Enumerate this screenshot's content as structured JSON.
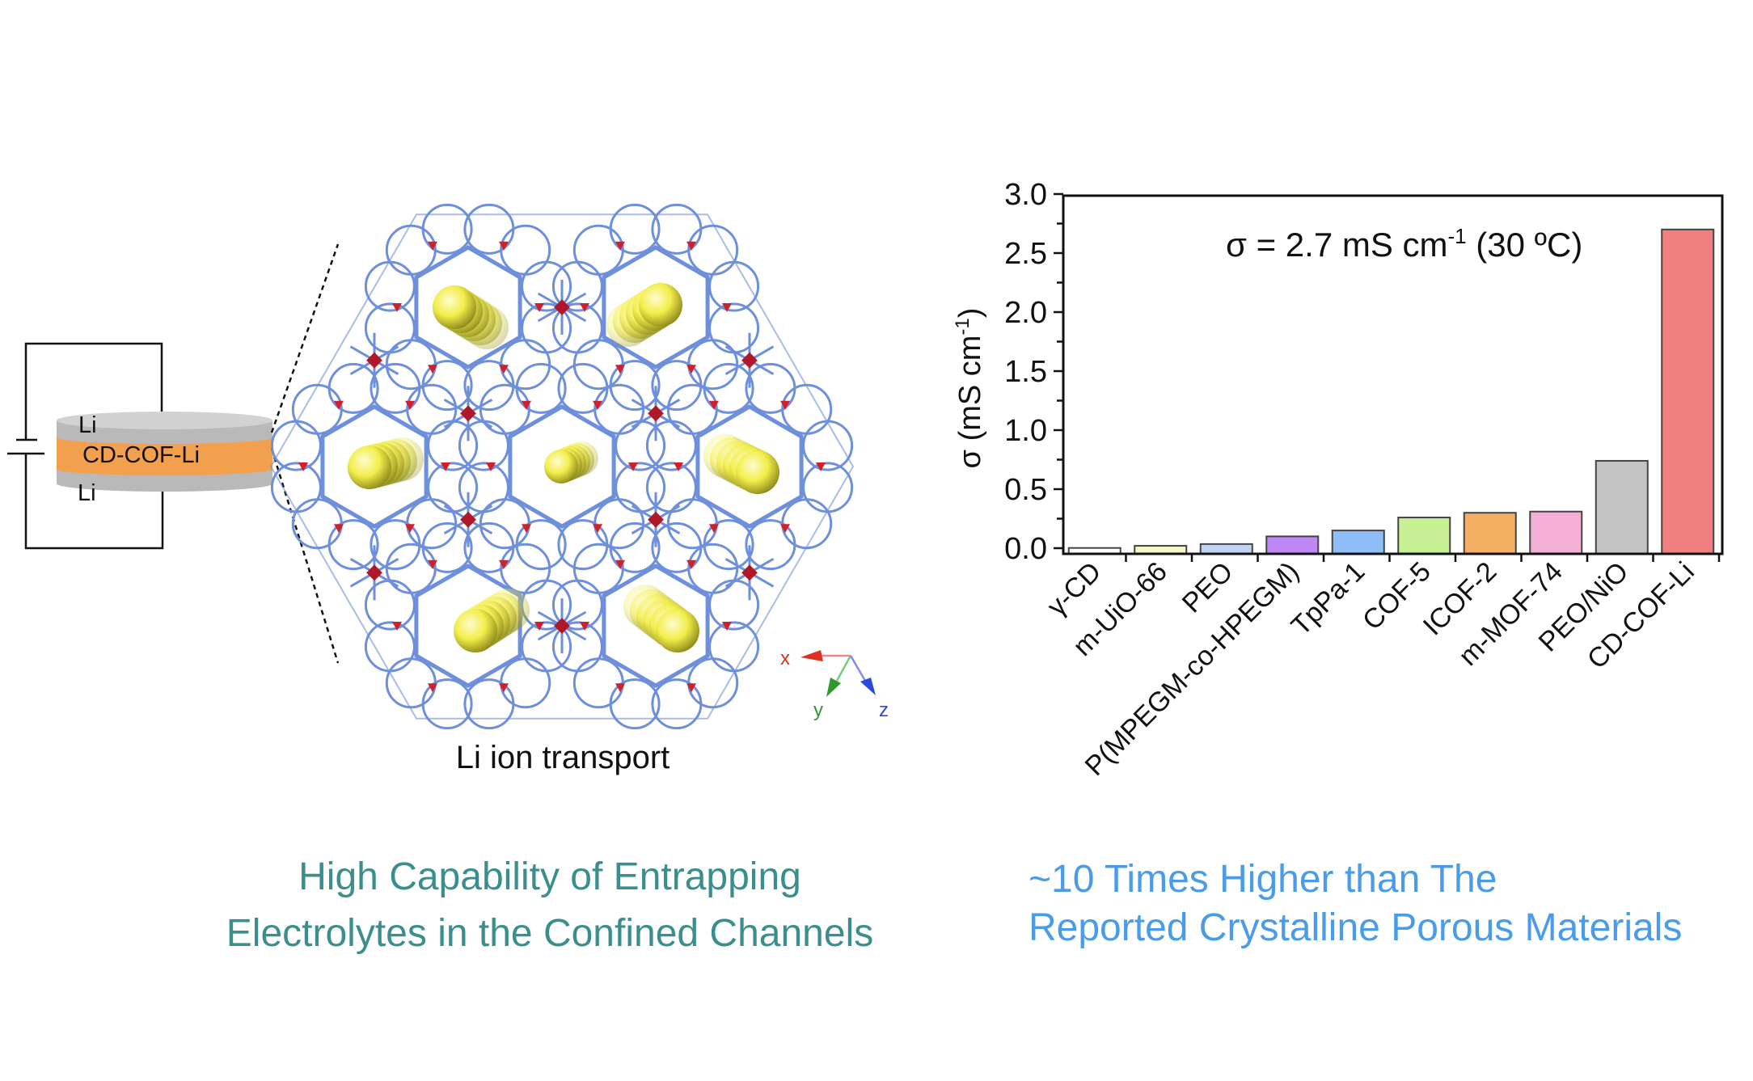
{
  "scheme": {
    "cell_top_label": "Li",
    "cell_middle_label": "CD-COF-Li",
    "cell_bottom_label": "Li",
    "lattice_caption": "Li ion transport",
    "axes": {
      "x": "x",
      "y": "y",
      "z": "z"
    },
    "colors": {
      "li_layer": "#bdbdbd",
      "electrolyte_layer": "#f3a04e",
      "framework": "#6e8fdc",
      "node": "#d0202a",
      "li_ion": "#f2ee4a",
      "axis_x": "#e03020",
      "axis_y": "#2e9a2e",
      "axis_z": "#2a4ad8"
    }
  },
  "captions": {
    "left_line1": "High Capability of Entrapping",
    "left_line2": "Electrolytes in the Confined Channels",
    "right_line1": "~10 Times Higher than The",
    "right_line2": "Reported Crystalline Porous Materials",
    "left_color": "#3a8f8c",
    "right_color": "#4a9be8"
  },
  "chart_data": {
    "type": "bar",
    "title": "",
    "xlabel": "",
    "ylabel_main": "σ (mS cm",
    "ylabel_sup": "-1",
    "ylabel_end": ")",
    "ylim": [
      0,
      3.0
    ],
    "yticks": [
      "0.0",
      "0.5",
      "1.0",
      "1.5",
      "2.0",
      "2.5",
      "3.0"
    ],
    "ytick_values": [
      0,
      0.5,
      1.0,
      1.5,
      2.0,
      2.5,
      3.0
    ],
    "minor_tick_step": 0.25,
    "grid": false,
    "annotation_main": "σ = 2.7 mS cm",
    "annotation_sup": "-1",
    "annotation_end": " (30 ºC)",
    "categories": [
      "γ-CD",
      "m-UiO-66",
      "PEO",
      "P(MPEGM-co-HPEGM)",
      "TpPa-1",
      "COF-5",
      "ICOF-2",
      "m-MOF-74",
      "PEO/NiO",
      "CD-COF-Li"
    ],
    "values": [
      0.002,
      0.02,
      0.035,
      0.1,
      0.15,
      0.26,
      0.3,
      0.31,
      0.74,
      2.7
    ],
    "bar_colors": [
      "#ffffff",
      "#f6f8c8",
      "#c2d3f5",
      "#be88f4",
      "#8fbdf7",
      "#c8f095",
      "#f4b062",
      "#f4b0d4",
      "#c4c4c4",
      "#f08080"
    ]
  }
}
